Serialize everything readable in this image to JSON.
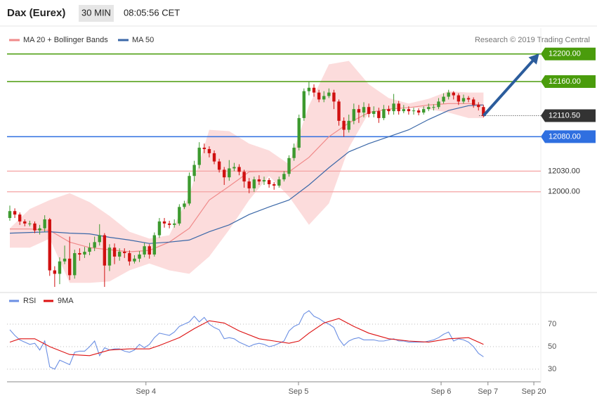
{
  "header": {
    "title": "Dax (Eurex)",
    "interval": "30 MIN",
    "time": "08:05:56 CET",
    "credit": "Research © 2019 Trading Central"
  },
  "chart_data": [
    {
      "type": "candlestick",
      "up_color": "#3d9a2f",
      "down_color": "#d01010",
      "xlim": [
        -0.56,
        106.5
      ],
      "ylim": [
        11860,
        12212
      ],
      "open": [
        11962,
        11972,
        11967,
        11957,
        11954,
        11954,
        11944,
        11947,
        11960,
        11886,
        11881,
        11899,
        11903,
        11879,
        11911,
        11909,
        11913,
        11919,
        11927,
        11937,
        11893,
        11919,
        11906,
        11913,
        11911,
        11899,
        11903,
        11909,
        11921,
        11909,
        11937,
        11957,
        11954,
        11952,
        11954,
        11978,
        11983,
        12023,
        12039,
        12064,
        12062,
        12056,
        12044,
        12032,
        12021,
        12034,
        12036,
        12029,
        12015,
        12005,
        12018,
        12015,
        12017,
        12011,
        12009,
        12018,
        12026,
        12049,
        12064,
        12107,
        12146,
        12151,
        12144,
        12134,
        12139,
        12144,
        12131,
        12103,
        12090,
        12103,
        12120,
        12115,
        12123,
        12113,
        12117,
        12107,
        12120,
        12117,
        12128,
        12117,
        12120,
        12117,
        12118,
        12115,
        12120,
        12123,
        12123,
        12131,
        12138,
        12144,
        12140,
        12131,
        12136,
        12134,
        12126,
        12123
      ],
      "high": [
        11980,
        11976,
        11970,
        11960,
        11958,
        11957,
        11952,
        11966,
        11962,
        11892,
        11905,
        11922,
        11935,
        11916,
        11918,
        11920,
        11926,
        11935,
        11953,
        11940,
        11924,
        11925,
        11918,
        11918,
        11915,
        11908,
        11914,
        11926,
        11924,
        11941,
        11962,
        11962,
        11958,
        11960,
        11982,
        11987,
        12028,
        12045,
        12072,
        12070,
        12066,
        12060,
        12048,
        12036,
        12046,
        12042,
        12040,
        12032,
        12020,
        12022,
        12024,
        12022,
        12020,
        12014,
        12022,
        12030,
        12053,
        12070,
        12112,
        12150,
        12160,
        12156,
        12148,
        12146,
        12150,
        12148,
        12134,
        12108,
        12112,
        12128,
        12126,
        12130,
        12128,
        12124,
        12122,
        12126,
        12125,
        12142,
        12132,
        12126,
        12124,
        12122,
        12121,
        12124,
        12128,
        12127,
        12136,
        12143,
        12148,
        12146,
        12143,
        12141,
        12139,
        12137,
        12130,
        12126
      ],
      "low": [
        11958,
        11962,
        11952,
        11950,
        11950,
        11940,
        11938,
        11942,
        11878,
        11862,
        11866,
        11895,
        11872,
        11874,
        11900,
        11904,
        11908,
        11914,
        11922,
        11862,
        11885,
        11895,
        11900,
        11904,
        11893,
        11896,
        11898,
        11905,
        11903,
        11906,
        11933,
        11948,
        11947,
        11948,
        11951,
        11975,
        11980,
        12015,
        12034,
        12056,
        12050,
        12040,
        12028,
        12010,
        12016,
        12030,
        12024,
        12006,
        11998,
        12000,
        12010,
        12010,
        12006,
        12003,
        12006,
        12015,
        12022,
        12045,
        12060,
        12103,
        12140,
        12138,
        12130,
        12130,
        12136,
        12120,
        12096,
        12080,
        12086,
        12098,
        12100,
        12108,
        12108,
        12108,
        12100,
        12104,
        12112,
        12112,
        12112,
        12114,
        12112,
        12112,
        12111,
        12112,
        12117,
        12118,
        12120,
        12128,
        12134,
        12134,
        12126,
        12128,
        12130,
        12122,
        12118,
        12108
      ],
      "close": [
        11972,
        11967,
        11957,
        11954,
        11954,
        11944,
        11947,
        11960,
        11886,
        11881,
        11899,
        11903,
        11879,
        11911,
        11909,
        11913,
        11919,
        11927,
        11937,
        11893,
        11919,
        11906,
        11913,
        11911,
        11899,
        11903,
        11909,
        11921,
        11909,
        11937,
        11957,
        11954,
        11952,
        11954,
        11978,
        11983,
        12023,
        12039,
        12064,
        12062,
        12056,
        12044,
        12032,
        12021,
        12034,
        12036,
        12029,
        12015,
        12005,
        12018,
        12015,
        12017,
        12011,
        12009,
        12018,
        12026,
        12049,
        12064,
        12107,
        12146,
        12151,
        12144,
        12134,
        12139,
        12144,
        12131,
        12103,
        12090,
        12103,
        12120,
        12115,
        12123,
        12113,
        12117,
        12107,
        12120,
        12117,
        12128,
        12117,
        12120,
        12117,
        12118,
        12115,
        12120,
        12123,
        12123,
        12131,
        12138,
        12144,
        12140,
        12131,
        12136,
        12134,
        12126,
        12123,
        12110
      ],
      "series": [
        {
          "name": "MA 20 + Bollinger Bands",
          "color": "#f08a8a",
          "band_color": "#fcdcdc",
          "x": [
            0,
            4,
            8,
            12,
            16,
            20,
            24,
            28,
            32,
            36,
            40,
            44,
            48,
            52,
            56,
            60,
            64,
            68,
            72,
            76,
            80,
            84,
            88,
            92,
            95
          ],
          "values": [
            11946,
            11946,
            11944,
            11927,
            11919,
            11916,
            11913,
            11915,
            11927,
            11947,
            11988,
            12008,
            12029,
            12030,
            12029,
            12050,
            12080,
            12100,
            12115,
            12120,
            12122,
            12126,
            12128,
            12128,
            12126
          ],
          "upper": [
            11947,
            11975,
            11988,
            11998,
            11985,
            11965,
            11942,
            11932,
            11937,
            11995,
            12090,
            12088,
            12070,
            12060,
            12040,
            12125,
            12185,
            12190,
            12156,
            12136,
            12128,
            12135,
            12146,
            12144,
            12144
          ],
          "lower": [
            11919,
            11919,
            11932,
            11868,
            11868,
            11870,
            11886,
            11896,
            11886,
            11881,
            11906,
            11945,
            11988,
            12023,
            11993,
            11952,
            11983,
            12064,
            12115,
            12120,
            12123,
            12120,
            12115,
            12107,
            12107
          ]
        },
        {
          "name": "MA 50",
          "color": "#3b68a8",
          "x": [
            0,
            4,
            8,
            12,
            16,
            20,
            24,
            28,
            32,
            36,
            40,
            44,
            48,
            52,
            56,
            60,
            64,
            68,
            72,
            76,
            80,
            84,
            88,
            92,
            95
          ],
          "values": [
            11940,
            11941,
            11942,
            11940,
            11939,
            11934,
            11930,
            11925,
            11927,
            11930,
            11942,
            11952,
            11967,
            11978,
            11988,
            12010,
            12035,
            12058,
            12070,
            12080,
            12090,
            12105,
            12118,
            12125,
            12126
          ]
        }
      ],
      "levels": [
        {
          "value": 12200,
          "label": "12200.00",
          "color": "#4a9c0c",
          "style": "box"
        },
        {
          "value": 12160,
          "label": "12160.00",
          "color": "#4a9c0c",
          "style": "box"
        },
        {
          "value": 12110.5,
          "label": "12110.50",
          "color": "#333333",
          "style": "dotted-box"
        },
        {
          "value": 12080,
          "label": "12080.00",
          "color": "#2f6fe0",
          "style": "box"
        },
        {
          "value": 12030,
          "label": "12030.00",
          "color": "#f4a3a3",
          "style": "text",
          "text_color": "#cc2020"
        },
        {
          "value": 12000,
          "label": "12000.00",
          "color": "#f4a3a3",
          "style": "text",
          "text_color": "#cc2020"
        }
      ],
      "forecast": {
        "color": "#2b5c9c",
        "x": [
          95,
          105.6
        ],
        "values": [
          12110.5,
          12196
        ]
      }
    },
    {
      "type": "line",
      "xlim": [
        -0.56,
        106.5
      ],
      "ylim": [
        20.6,
        95.6
      ],
      "yticks": [
        30,
        50,
        70
      ],
      "xticks": [
        {
          "value": 27.3,
          "label": "Sep 4"
        },
        {
          "value": 57.9,
          "label": "Sep 5"
        },
        {
          "value": 86.5,
          "label": "Sep 6"
        },
        {
          "value": 95.9,
          "label": "Sep 7"
        },
        {
          "value": 105.1,
          "label": "Sep 20"
        }
      ],
      "series": [
        {
          "name": "RSI",
          "color": "#6b8fe3",
          "values": [
            65,
            60,
            56,
            54,
            52,
            53,
            47,
            55,
            32,
            30,
            38,
            36,
            34,
            45,
            46,
            46,
            50,
            55,
            42,
            49,
            47,
            48,
            48,
            46,
            45,
            47,
            52,
            49,
            52,
            58,
            62,
            61,
            60,
            63,
            68,
            70,
            72,
            77,
            72,
            76,
            70,
            67,
            65,
            57,
            58,
            57,
            54,
            52,
            50,
            52,
            53,
            52,
            50,
            51,
            53,
            55,
            64,
            68,
            70,
            79,
            82,
            77,
            75,
            72,
            70,
            67,
            57,
            51,
            55,
            57,
            58,
            56,
            56,
            56,
            55,
            55,
            56,
            57,
            55,
            55,
            54,
            54,
            54,
            54,
            55,
            56,
            58,
            61,
            63,
            55,
            57,
            56,
            54,
            50,
            44,
            41
          ]
        },
        {
          "name": "9MA",
          "color": "#dd1111",
          "x": [
            0,
            2,
            5,
            8,
            12,
            16,
            20,
            24,
            28,
            30,
            34,
            37,
            40,
            43,
            46,
            50,
            53,
            56,
            58,
            60,
            63,
            66,
            69,
            72,
            76,
            80,
            84,
            88,
            92,
            95
          ],
          "values": [
            54,
            57,
            57,
            50,
            43,
            42,
            47,
            48,
            48,
            51,
            58,
            66,
            73,
            71,
            64,
            57,
            55,
            53,
            55,
            62,
            71,
            75,
            68,
            62,
            57,
            55,
            54,
            57,
            58,
            52
          ]
        }
      ]
    }
  ]
}
